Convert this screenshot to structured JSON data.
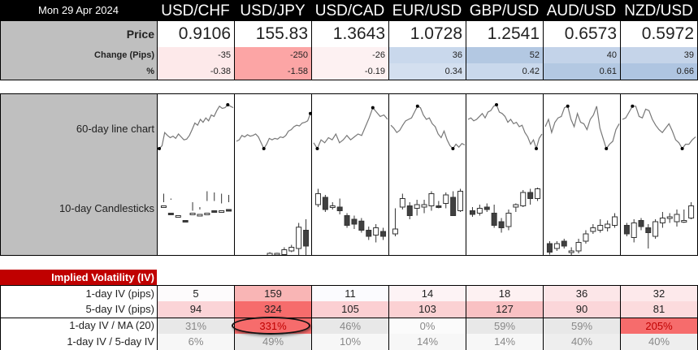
{
  "header": {
    "date": "Mon 29 Apr 2024"
  },
  "pairs": [
    "USD/CHF",
    "USD/JPY",
    "USD/CAD",
    "EUR/USD",
    "GBP/USD",
    "AUD/USD",
    "NZD/USD"
  ],
  "rows": {
    "price_label": "Price",
    "change_label": "Change (Pips)",
    "pct_label": "%"
  },
  "prices": [
    "0.9106",
    "155.83",
    "1.3643",
    "1.0728",
    "1.2541",
    "0.6573",
    "0.5972"
  ],
  "changes": [
    "-35",
    "-250",
    "-26",
    "36",
    "52",
    "40",
    "39"
  ],
  "pcts": [
    "-0.38",
    "-1.58",
    "-0.19",
    "0.34",
    "0.42",
    "0.61",
    "0.66"
  ],
  "change_colors": [
    "#fde9ea",
    "#fca5a5",
    "#fdf1f2",
    "#c9d8ec",
    "#b3c8e2",
    "#c3d3e9",
    "#c5d4e9"
  ],
  "pct_colors": [
    "#fde9ea",
    "#fca5a5",
    "#fdf1f2",
    "#d3dfef",
    "#c9d8ec",
    "#b3c8e2",
    "#afc5e1"
  ],
  "charts": {
    "line_label": "60-day line chart",
    "candle_label": "10-day Candlesticks"
  },
  "iv": {
    "title": "Implied Volatility (IV)",
    "labels": [
      "1-day IV (pips)",
      "5-day IV (pips)",
      "1-day IV / MA (20)",
      "1-day IV / 5-day IV"
    ],
    "one_day": [
      "5",
      "159",
      "11",
      "14",
      "18",
      "36",
      "32"
    ],
    "five_day": [
      "94",
      "324",
      "105",
      "103",
      "127",
      "90",
      "81"
    ],
    "iv_ma": [
      "31%",
      "331%",
      "46%",
      "0%",
      "59%",
      "59%",
      "205%"
    ],
    "iv_ratio": [
      "6%",
      "49%",
      "10%",
      "14%",
      "14%",
      "40%",
      "40%"
    ],
    "one_day_colors": [
      "#fdfbfc",
      "#f9b5b5",
      "#fbfbfe",
      "#fdf3f5",
      "#fdf1f2",
      "#fce6e8",
      "#fde9eb"
    ],
    "five_day_colors": [
      "#fbd4d7",
      "#f66c6c",
      "#fbcfd2",
      "#fbd1d3",
      "#f9c1c3",
      "#fbd6d9",
      "#fcdbdd"
    ],
    "iv_ma_colors": [
      "#e8e8e8",
      "#f66c6c",
      "#e8e8e8",
      "#fbfbfb",
      "#e8e8e8",
      "#e8e8e8",
      "#f66c6c"
    ],
    "iv_ratio_colors": [
      "#f7f7f7",
      "#e8e8e8",
      "#f7f7f7",
      "#f7f7f7",
      "#f7f7f7",
      "#eeeeee",
      "#eeeeee"
    ],
    "highlight": "331%"
  }
}
